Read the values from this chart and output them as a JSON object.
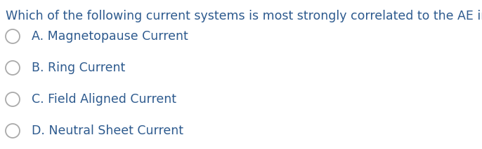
{
  "background_color": "#ffffff",
  "question": "Which of the following current systems is most strongly correlated to the AE index?",
  "question_color": "#2d5a8e",
  "options": [
    "A. Magnetopause Current",
    "B. Ring Current",
    "C. Field Aligned Current",
    "D. Neutral Sheet Current"
  ],
  "option_color": "#2d5a8e",
  "circle_edge_color": "#aaaaaa",
  "font_size_question": 12.5,
  "font_size_options": 12.5,
  "figsize": [
    6.86,
    2.13
  ],
  "dpi": 100
}
